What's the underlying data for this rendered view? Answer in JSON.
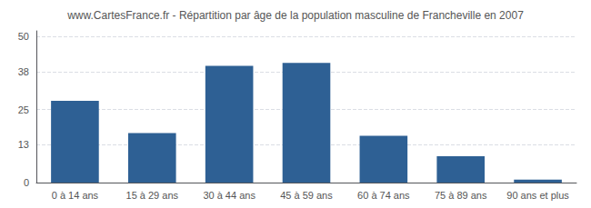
{
  "chart_data": {
    "type": "bar",
    "title": "www.CartesFrance.fr - Répartition par âge de la population masculine de Francheville en 2007",
    "categories": [
      "0 à 14 ans",
      "15 à 29 ans",
      "30 à 44 ans",
      "45 à 59 ans",
      "60 à 74 ans",
      "75 à 89 ans",
      "90 ans et plus"
    ],
    "values": [
      28,
      17,
      40,
      41,
      16,
      9,
      1
    ],
    "color": "#2e6094",
    "ylim": [
      0,
      52
    ],
    "yticks": [
      0,
      13,
      25,
      38,
      50
    ],
    "grid": true
  }
}
